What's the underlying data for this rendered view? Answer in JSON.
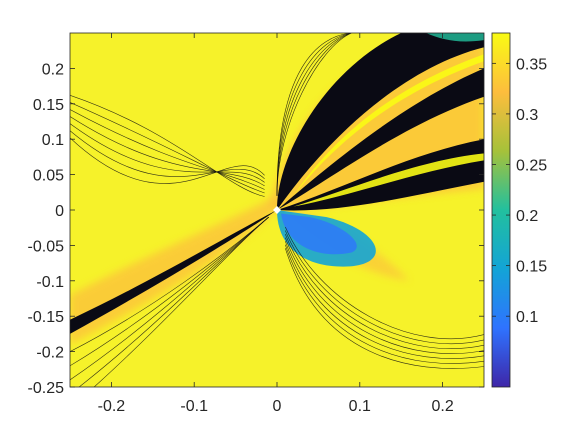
{
  "chart_data": {
    "type": "heatmap",
    "subtype": "filled-contour",
    "title": "",
    "xlabel": "",
    "ylabel": "",
    "xlim": [
      -0.25,
      0.25
    ],
    "ylim": [
      -0.25,
      0.25
    ],
    "x_ticks": [
      -0.2,
      -0.1,
      0,
      0.1,
      0.2
    ],
    "x_tick_labels": [
      "-0.2",
      "-0.1",
      "0",
      "0.1",
      "0.2"
    ],
    "y_ticks": [
      0.2,
      0.15,
      0.1,
      0.05,
      0,
      -0.05,
      -0.1,
      -0.15,
      -0.2,
      -0.25
    ],
    "y_tick_labels": [
      "0.2",
      "0.15",
      "0.1",
      "0.05",
      "0",
      "-0.05",
      "-0.1",
      "-0.15",
      "-0.2",
      "-0.25"
    ],
    "colorbar": {
      "range": [
        0.03,
        0.38
      ],
      "ticks": [
        0.35,
        0.3,
        0.25,
        0.2,
        0.15,
        0.1
      ],
      "tick_labels": [
        "0.35",
        "0.3",
        "0.25",
        "0.2",
        "0.15",
        "0.1"
      ],
      "colormap": "parula",
      "colors": [
        "#3e26a8",
        "#2f73ff",
        "#13a4d6",
        "#22c09e",
        "#a6c13a",
        "#fdbd3d",
        "#f9fb14"
      ]
    },
    "grid": false,
    "contour_lines": true,
    "singular_point": [
      0,
      0
    ]
  }
}
